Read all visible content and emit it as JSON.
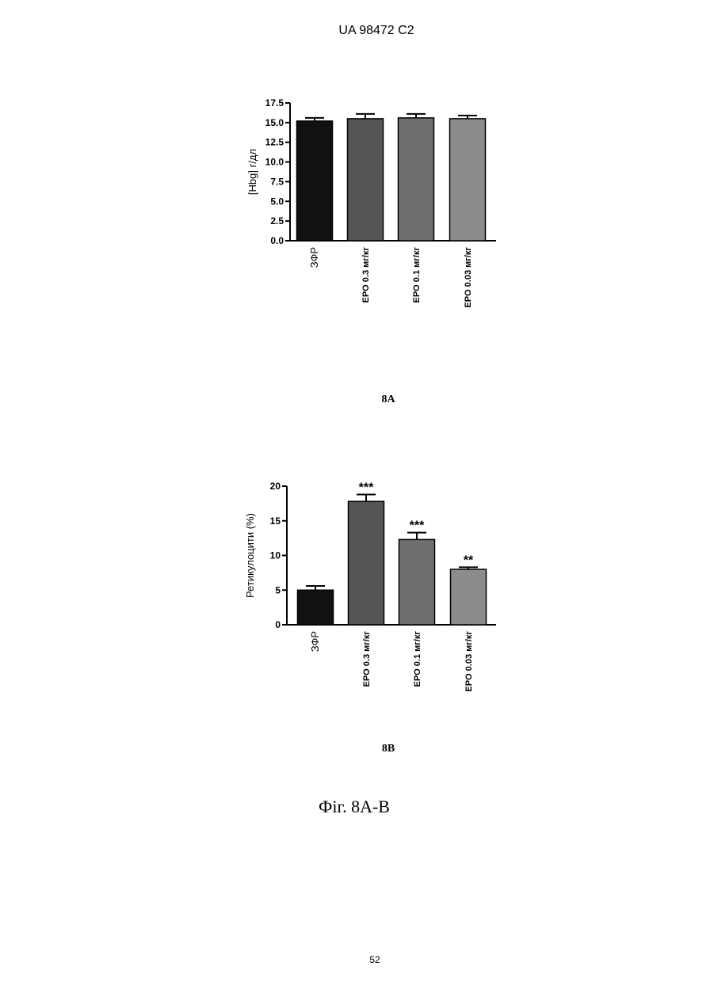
{
  "header": "UA   98472   C2",
  "chart_data": [
    {
      "type": "bar",
      "subtitle": "8A",
      "y_label": "[Hbg] г/дл",
      "categories": [
        "ЗФР",
        "EPO 0.3 мг/кг",
        "EPO 0.1 мг/кг",
        "EPO 0.03 мг/кг"
      ],
      "values": [
        15.2,
        15.5,
        15.6,
        15.5
      ],
      "errors": [
        0.4,
        0.6,
        0.5,
        0.4
      ],
      "colors": [
        "#111111",
        "#555555",
        "#6f6f6f",
        "#8c8c8c"
      ],
      "ylim": [
        0,
        17.5
      ],
      "yticks": [
        {
          "value": 0,
          "label": "0.0"
        },
        2.5,
        {
          "value": 5,
          "label": "5.0"
        },
        7.5,
        {
          "value": 10,
          "label": "10.0"
        },
        12.5,
        {
          "value": 15,
          "label": "15.0"
        },
        17.5
      ]
    },
    {
      "type": "bar",
      "subtitle": "8B",
      "y_label": "Ретикулоцити (%)",
      "categories": [
        "ЗФР",
        "EPO 0.3 мг/кг",
        "EPO 0.1 мг/кг",
        "EPO 0.03 мг/кг"
      ],
      "values": [
        5.0,
        17.8,
        12.3,
        8.0
      ],
      "errors": [
        0.6,
        1.0,
        1.0,
        0.3
      ],
      "annotations": [
        null,
        "***",
        "***",
        "**"
      ],
      "colors": [
        "#111111",
        "#555555",
        "#6f6f6f",
        "#8c8c8c"
      ],
      "ylim": [
        0,
        20
      ],
      "yticks": [
        0,
        5,
        10,
        15,
        20
      ]
    }
  ],
  "figure_caption": "Фіг. 8А-В",
  "page_number": "52"
}
